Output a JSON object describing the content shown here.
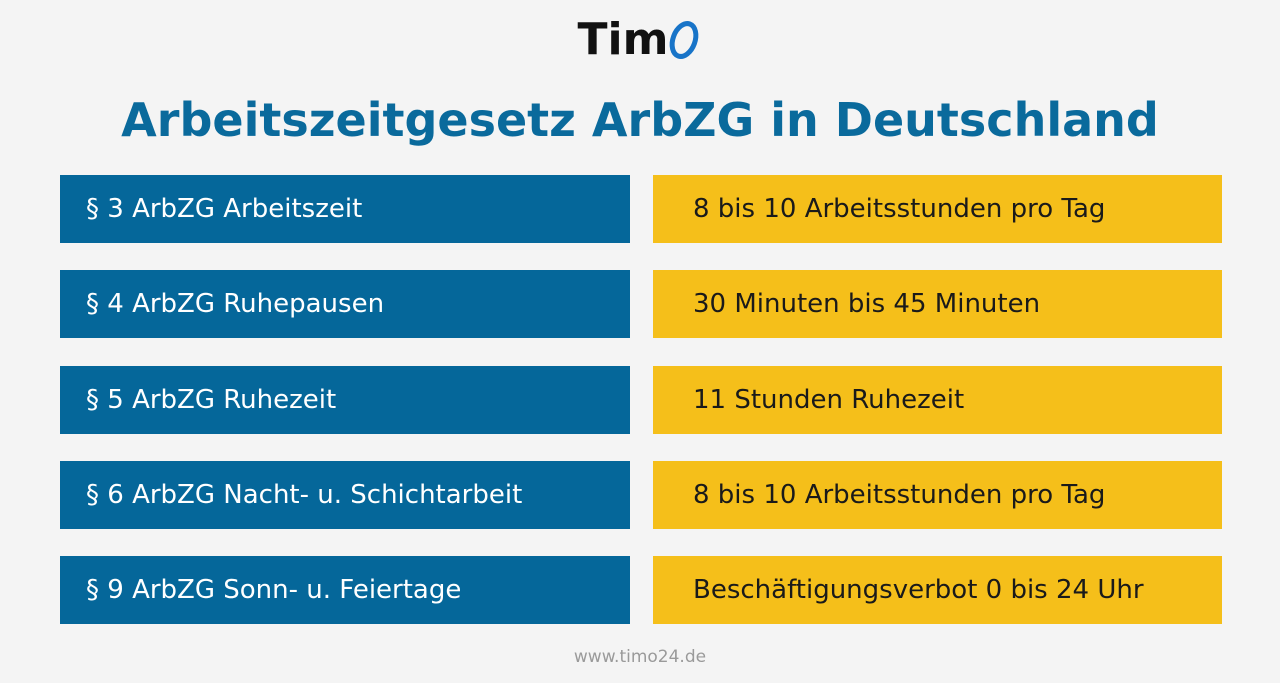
{
  "logo": {
    "text": "Tim",
    "colors": {
      "text": "#111111",
      "ring": "#1874c8"
    }
  },
  "title": "Arbeitszeitgesetz ArbZG in Deutschland",
  "rows": [
    {
      "law": "§ 3 ArbZG Arbeitszeit",
      "rule": "8 bis 10 Arbeitsstunden pro Tag"
    },
    {
      "law": "§ 4 ArbZG Ruhepausen",
      "rule": "30 Minuten bis 45 Minuten"
    },
    {
      "law": "§ 5 ArbZG Ruhezeit",
      "rule": "11 Stunden Ruhezeit"
    },
    {
      "law": "§ 6 ArbZG Nacht- u. Schichtarbeit",
      "rule": "8 bis 10 Arbeitsstunden pro Tag"
    },
    {
      "law": "§ 9 ArbZG Sonn- u. Feiertage",
      "rule": "Beschäftigungsverbot 0 bis 24 Uhr"
    }
  ],
  "footer": "www.timo24.de",
  "colors": {
    "background": "#f4f4f4",
    "title": "#0a6a9c",
    "left_cell": "#05679a",
    "right_cell": "#f5bf1a",
    "footer": "#9a9a9a"
  }
}
